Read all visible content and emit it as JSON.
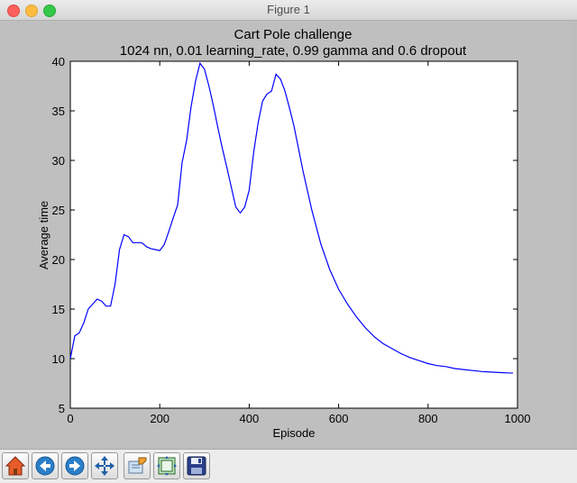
{
  "window": {
    "title": "Figure 1"
  },
  "chart_data": {
    "type": "line",
    "title": "Cart Pole challenge",
    "subtitle": "1024 nn, 0.01 learning_rate, 0.99 gamma and 0.6 dropout",
    "xlabel": "Episode",
    "ylabel": "Average time",
    "xlim": [
      0,
      1000
    ],
    "ylim": [
      5,
      40
    ],
    "xticks": [
      0,
      200,
      400,
      600,
      800,
      1000
    ],
    "yticks": [
      5,
      10,
      15,
      20,
      25,
      30,
      35,
      40
    ],
    "grid": false,
    "color": "#0000ff",
    "series": [
      {
        "x": [
          0,
          10,
          20,
          30,
          40,
          50,
          60,
          70,
          80,
          90,
          100,
          110,
          120,
          130,
          140,
          150,
          160,
          170,
          180,
          190,
          200,
          210,
          220,
          230,
          240,
          250,
          260,
          270,
          280,
          290,
          300,
          310,
          320,
          330,
          340,
          350,
          360,
          370,
          380,
          390,
          400,
          410,
          420,
          430,
          440,
          450,
          460,
          470,
          480,
          490,
          500,
          520,
          540,
          560,
          580,
          600,
          620,
          640,
          660,
          680,
          700,
          720,
          740,
          760,
          780,
          800,
          820,
          840,
          860,
          880,
          900,
          920,
          940,
          960,
          980,
          990
        ],
        "y": [
          10.0,
          12.3,
          12.6,
          13.6,
          15.0,
          15.5,
          16.0,
          15.8,
          15.3,
          15.3,
          17.5,
          21.0,
          22.5,
          22.3,
          21.7,
          21.7,
          21.7,
          21.3,
          21.1,
          21.0,
          20.9,
          21.5,
          22.8,
          24.2,
          25.5,
          29.8,
          32.0,
          35.4,
          38.0,
          39.8,
          39.2,
          37.5,
          35.5,
          33.3,
          31.2,
          29.3,
          27.3,
          25.3,
          24.7,
          25.3,
          27.0,
          30.8,
          33.8,
          36.0,
          36.7,
          37.0,
          38.7,
          38.2,
          37.0,
          35.3,
          33.5,
          29.0,
          25.0,
          21.6,
          19.0,
          17.0,
          15.5,
          14.2,
          13.1,
          12.2,
          11.5,
          11.0,
          10.5,
          10.1,
          9.8,
          9.5,
          9.3,
          9.2,
          9.0,
          8.9,
          8.8,
          8.7,
          8.65,
          8.6,
          8.55,
          8.55
        ]
      }
    ]
  },
  "toolbar": {
    "buttons": [
      {
        "name": "home-icon"
      },
      {
        "name": "back-arrow-icon"
      },
      {
        "name": "forward-arrow-icon"
      },
      {
        "name": "pan-icon"
      },
      {
        "name": "zoom-icon"
      },
      {
        "name": "subplots-icon"
      },
      {
        "name": "save-icon"
      }
    ]
  }
}
